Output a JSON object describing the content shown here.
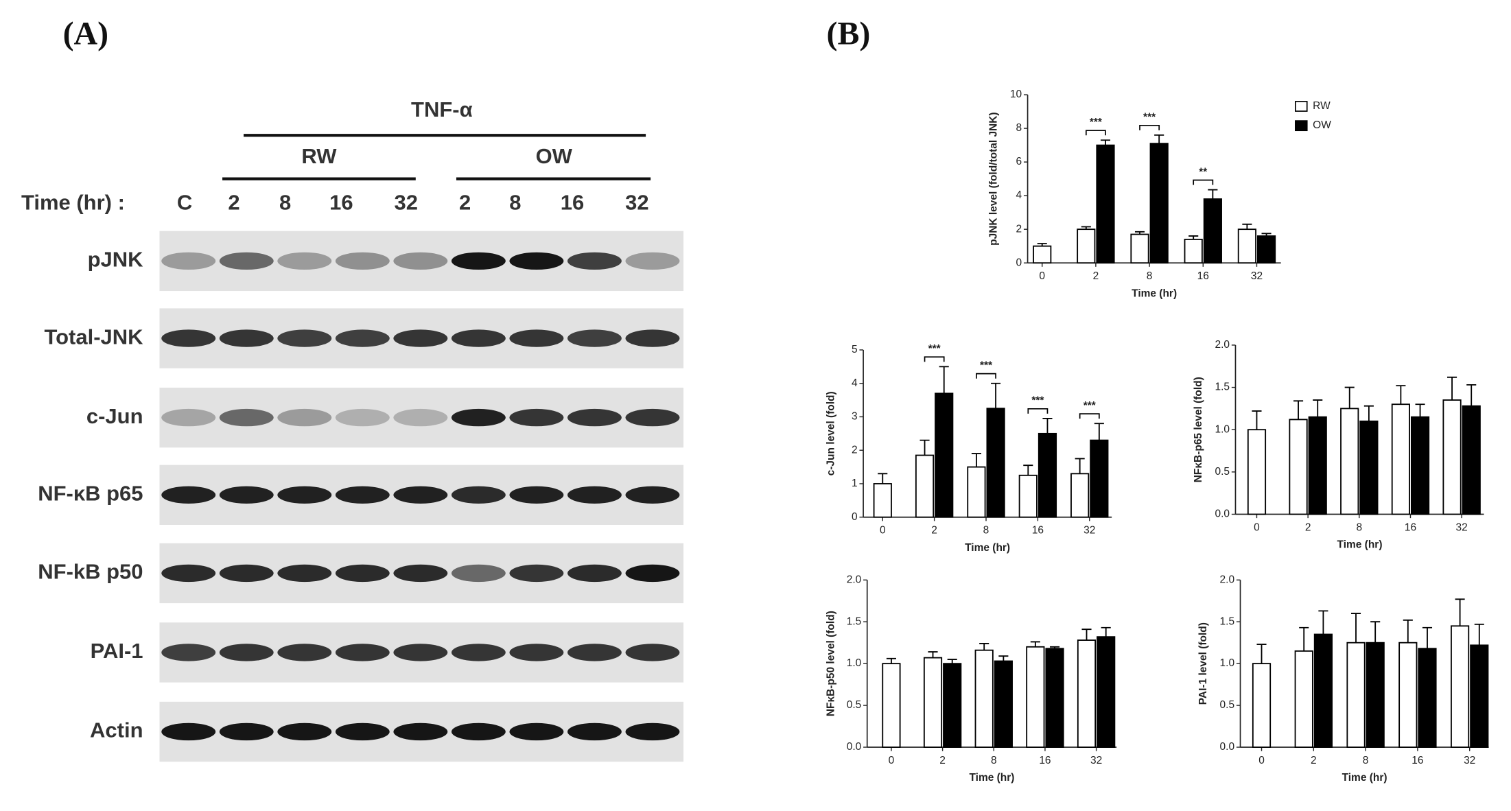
{
  "panel_a": {
    "label": "(A)",
    "treatment": "TNF-α",
    "groups": [
      "RW",
      "OW"
    ],
    "time_label": "Time (hr) :",
    "lanes": [
      "C",
      "2",
      "8",
      "16",
      "32",
      "2",
      "8",
      "16",
      "32"
    ],
    "rows": [
      "pJNK",
      "Total-JNK",
      "c-Jun",
      "NF-κB p65",
      "NF-kB p50",
      "PAI-1",
      "Actin"
    ]
  },
  "panel_b": {
    "label": "(B)"
  },
  "chart_data": [
    {
      "type": "bar",
      "ylabel": "pJNK level (fold/total JNK)",
      "xlabel": "Time (hr)",
      "categories": [
        "0",
        "2",
        "8",
        "16",
        "32"
      ],
      "series": [
        {
          "name": "RW",
          "color": "#ffffff",
          "values": [
            1.0,
            2.0,
            1.7,
            1.4,
            2.0
          ],
          "errors": [
            0.15,
            0.15,
            0.15,
            0.2,
            0.3
          ]
        },
        {
          "name": "OW",
          "color": "#000000",
          "values": [
            null,
            7.0,
            7.1,
            3.8,
            1.6
          ],
          "errors": [
            null,
            0.3,
            0.5,
            0.55,
            0.15
          ]
        }
      ],
      "ylim": [
        0,
        10
      ],
      "yticks": [
        0,
        2,
        4,
        6,
        8,
        10
      ],
      "legend": "top-right",
      "annotations": [
        {
          "text": "***",
          "category": "2"
        },
        {
          "text": "***",
          "category": "8"
        },
        {
          "text": "**",
          "category": "16"
        }
      ]
    },
    {
      "type": "bar",
      "ylabel": "c-Jun level (fold)",
      "xlabel": "Time (hr)",
      "categories": [
        "0",
        "2",
        "8",
        "16",
        "32"
      ],
      "series": [
        {
          "color": "#ffffff",
          "values": [
            1.0,
            1.85,
            1.5,
            1.25,
            1.3
          ],
          "errors": [
            0.3,
            0.45,
            0.4,
            0.3,
            0.45
          ]
        },
        {
          "color": "#000000",
          "values": [
            null,
            3.7,
            3.25,
            2.5,
            2.3
          ],
          "errors": [
            null,
            0.8,
            0.75,
            0.45,
            0.5
          ]
        }
      ],
      "ylim": [
        0,
        5
      ],
      "yticks": [
        0,
        1,
        2,
        3,
        4,
        5
      ],
      "annotations": [
        {
          "text": "***",
          "category": "2"
        },
        {
          "text": "***",
          "category": "8"
        },
        {
          "text": "***",
          "category": "16"
        },
        {
          "text": "***",
          "category": "32"
        }
      ]
    },
    {
      "type": "bar",
      "ylabel": "NFκB-p65 level (fold)",
      "xlabel": "Time (hr)",
      "categories": [
        "0",
        "2",
        "8",
        "16",
        "32"
      ],
      "series": [
        {
          "color": "#ffffff",
          "values": [
            1.0,
            1.12,
            1.25,
            1.3,
            1.35
          ],
          "errors": [
            0.22,
            0.22,
            0.25,
            0.22,
            0.27
          ]
        },
        {
          "color": "#000000",
          "values": [
            null,
            1.15,
            1.1,
            1.15,
            1.28
          ],
          "errors": [
            null,
            0.2,
            0.18,
            0.15,
            0.25
          ]
        }
      ],
      "ylim": [
        0,
        2
      ],
      "yticks": [
        {
          "value": 0,
          "label": "0.0"
        },
        0.5,
        {
          "value": 1,
          "label": "1.0"
        },
        1.5,
        {
          "value": 2,
          "label": "2.0"
        }
      ]
    },
    {
      "type": "bar",
      "ylabel": "NFκB-p50 level (fold)",
      "xlabel": "Time (hr)",
      "categories": [
        "0",
        "2",
        "8",
        "16",
        "32"
      ],
      "series": [
        {
          "color": "#ffffff",
          "values": [
            1.0,
            1.07,
            1.16,
            1.2,
            1.28
          ],
          "errors": [
            0.06,
            0.07,
            0.08,
            0.06,
            0.13
          ]
        },
        {
          "color": "#000000",
          "values": [
            null,
            1.0,
            1.03,
            1.18,
            1.32
          ],
          "errors": [
            null,
            0.05,
            0.06,
            0.02,
            0.11
          ]
        }
      ],
      "ylim": [
        0,
        2
      ],
      "yticks": [
        {
          "value": 0,
          "label": "0.0"
        },
        0.5,
        {
          "value": 1,
          "label": "1.0"
        },
        1.5,
        {
          "value": 2,
          "label": "2.0"
        }
      ]
    },
    {
      "type": "bar",
      "ylabel": "PAI-1 level (fold)",
      "xlabel": "Time (hr)",
      "categories": [
        "0",
        "2",
        "8",
        "16",
        "32"
      ],
      "series": [
        {
          "color": "#ffffff",
          "values": [
            1.0,
            1.15,
            1.25,
            1.25,
            1.45
          ],
          "errors": [
            0.23,
            0.28,
            0.35,
            0.27,
            0.32
          ]
        },
        {
          "color": "#000000",
          "values": [
            null,
            1.35,
            1.25,
            1.18,
            1.22
          ],
          "errors": [
            null,
            0.28,
            0.25,
            0.25,
            0.25
          ]
        }
      ],
      "ylim": [
        0,
        2
      ],
      "yticks": [
        {
          "value": 0,
          "label": "0.0"
        },
        0.5,
        {
          "value": 1,
          "label": "1.0"
        },
        1.5,
        {
          "value": 2,
          "label": "2.0"
        }
      ]
    }
  ]
}
